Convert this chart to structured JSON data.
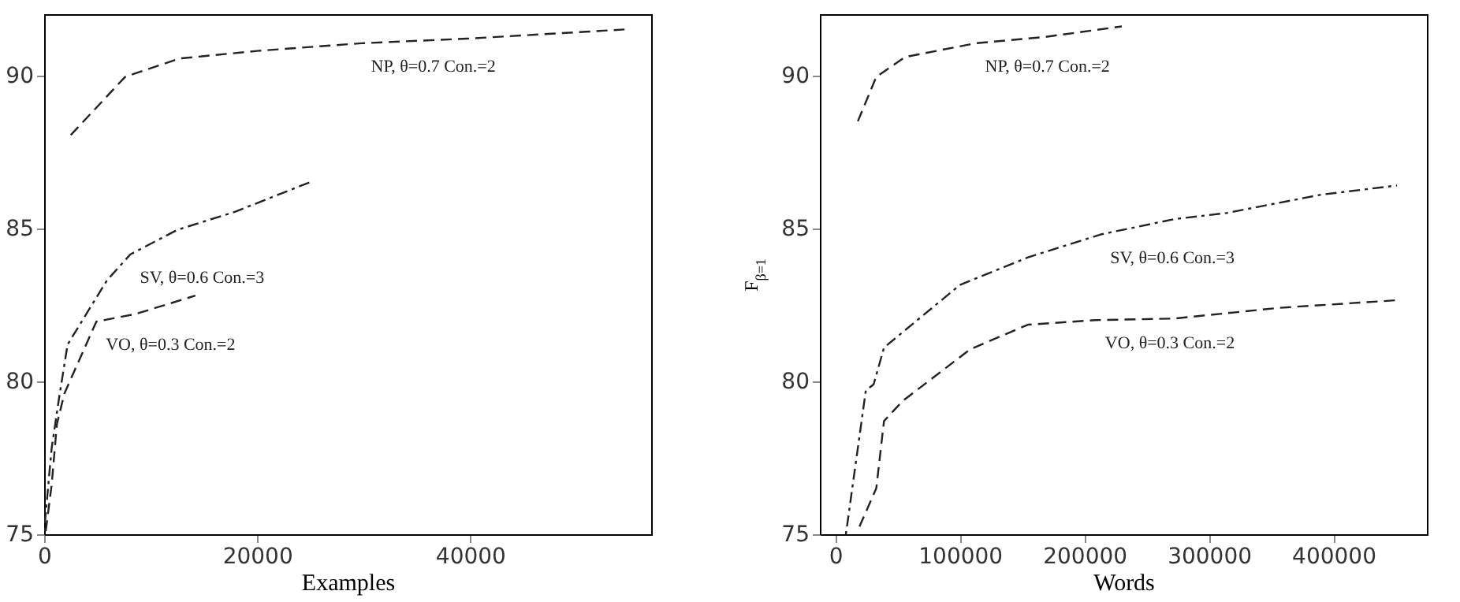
{
  "chart_data": [
    {
      "type": "line",
      "xlabel": "Examples",
      "xlim": [
        0,
        57000
      ],
      "ylim": [
        75,
        92
      ],
      "xticks": [
        0,
        20000,
        40000
      ],
      "yticks": [
        75,
        80,
        85,
        90
      ],
      "grid": false,
      "marker": "none",
      "series": [
        {
          "name": "NP, θ=0.7 Con.=2",
          "color": "#222222",
          "line_style": "dashed",
          "x": [
            2500,
            7600,
            12700,
            20000,
            29800,
            39700,
            54500
          ],
          "values": [
            88.05,
            89.95,
            90.55,
            90.8,
            91.05,
            91.2,
            91.5
          ]
        },
        {
          "name": "SV, θ=0.6 Con.=3",
          "color": "#222222",
          "line_style": "dotted",
          "x": [
            0,
            700,
            1400,
            2200,
            5900,
            8100,
            12500,
            18000,
            24900
          ],
          "values": [
            75.1,
            77.8,
            79.45,
            81.2,
            83.3,
            84.15,
            84.95,
            85.55,
            86.5
          ]
        },
        {
          "name": "VO, θ=0.3 Con.=2",
          "color": "#222222",
          "line_style": "dashed",
          "x": [
            150,
            700,
            1200,
            1900,
            4900,
            8600,
            14200
          ],
          "values": [
            75.1,
            76.6,
            78.6,
            79.6,
            81.95,
            82.2,
            82.8
          ]
        }
      ]
    },
    {
      "type": "line",
      "xlabel": "Words",
      "ylabel": "F$_{β=1}$",
      "xlim": [
        -12500,
        475000
      ],
      "ylim": [
        75,
        92
      ],
      "xticks": [
        0,
        100000,
        200000,
        300000,
        400000
      ],
      "yticks": [
        75,
        80,
        85,
        90
      ],
      "grid": false,
      "marker": "none",
      "series": [
        {
          "name": "NP, θ=0.7 Con.=2",
          "color": "#222222",
          "line_style": "dashed",
          "x": [
            18000,
            32800,
            55900,
            112600,
            167000,
            230000
          ],
          "values": [
            88.5,
            89.95,
            90.6,
            91.05,
            91.25,
            91.6
          ]
        },
        {
          "name": "SV, θ=0.6 Con.=3",
          "color": "#222222",
          "line_style": "dotted",
          "x": [
            8400,
            24400,
            30700,
            39000,
            100000,
            154600,
            213000,
            272000,
            314000,
            390000,
            451000
          ],
          "values": [
            75,
            79.7,
            79.9,
            81.1,
            83.15,
            84.05,
            84.8,
            85.3,
            85.5,
            86.1,
            86.4
          ]
        },
        {
          "name": "VO, θ=0.3 Con.=2",
          "color": "#222222",
          "line_style": "dashed",
          "x": [
            19300,
            32800,
            39000,
            53800,
            108400,
            154600,
            209000,
            272000,
            356000,
            451000
          ],
          "values": [
            75.25,
            76.5,
            78.7,
            79.35,
            81.05,
            81.85,
            82.0,
            82.05,
            82.4,
            82.65
          ]
        }
      ]
    }
  ]
}
